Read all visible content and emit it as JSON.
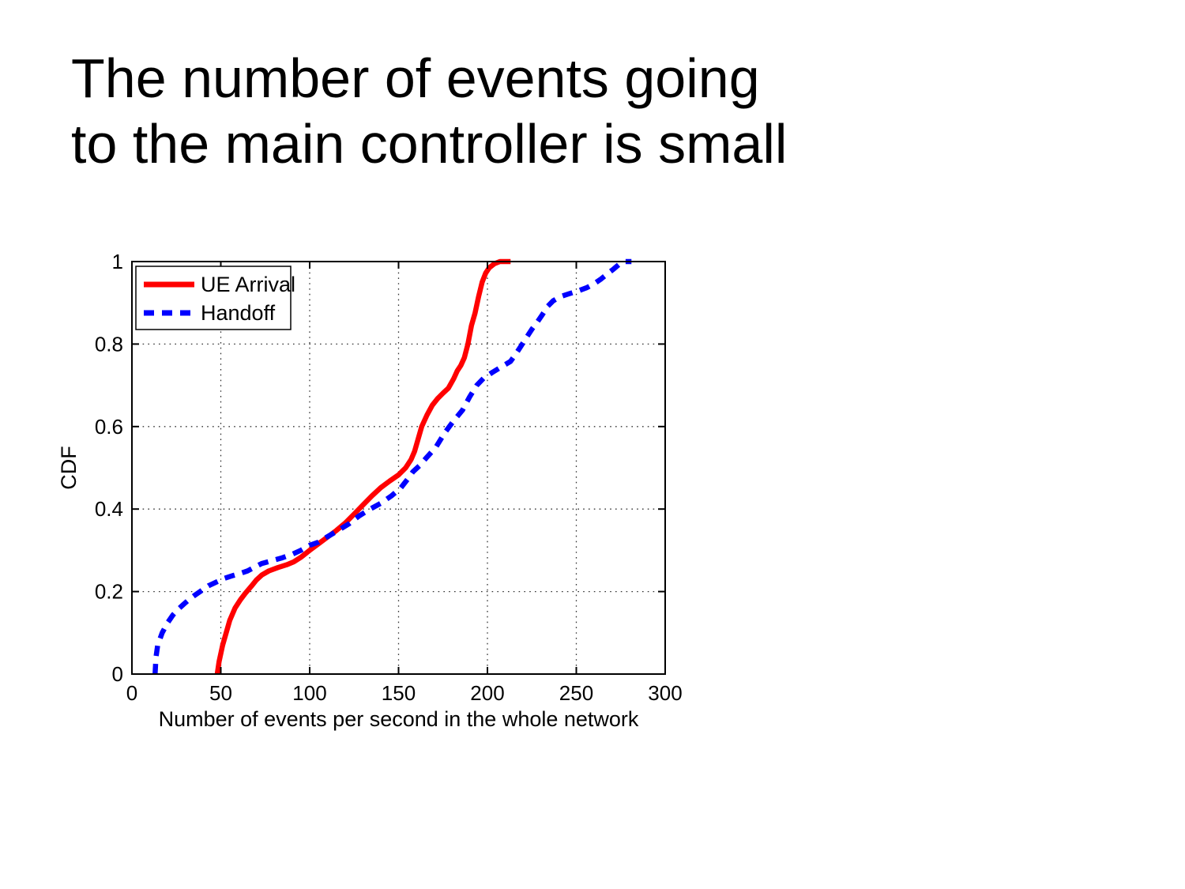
{
  "slide": {
    "title_line1": "The number of events going",
    "title_line2": "to the main controller is small"
  },
  "chart_data": {
    "type": "line",
    "title": "",
    "xlabel": "Number of events per second in the whole network",
    "ylabel": "CDF",
    "xlim": [
      0,
      300
    ],
    "ylim": [
      0,
      1
    ],
    "x_ticks": [
      0,
      50,
      100,
      150,
      200,
      250,
      300
    ],
    "x_tick_labels": [
      "0",
      "50",
      "100",
      "150",
      "200",
      "250",
      "300"
    ],
    "y_ticks": [
      0,
      0.2,
      0.4,
      0.6,
      0.8,
      1
    ],
    "y_tick_labels": [
      "0",
      "0.2",
      "0.4",
      "0.6",
      "0.8",
      "1"
    ],
    "grid": "dotted",
    "frame_color": "#000000",
    "grid_color": "#333333",
    "legend": {
      "position": "top-left",
      "border_color": "#000000",
      "background": "#ffffff"
    },
    "series": [
      {
        "name": "UE Arrival",
        "color": "#ff0000",
        "line_style": "solid",
        "points": [
          [
            48,
            0
          ],
          [
            49,
            0.03
          ],
          [
            51,
            0.07
          ],
          [
            53,
            0.1
          ],
          [
            55,
            0.13
          ],
          [
            58,
            0.16
          ],
          [
            61,
            0.18
          ],
          [
            64,
            0.197
          ],
          [
            67,
            0.212
          ],
          [
            70,
            0.228
          ],
          [
            73,
            0.24
          ],
          [
            77,
            0.25
          ],
          [
            82,
            0.258
          ],
          [
            87,
            0.265
          ],
          [
            91,
            0.272
          ],
          [
            95,
            0.283
          ],
          [
            100,
            0.3
          ],
          [
            105,
            0.316
          ],
          [
            110,
            0.332
          ],
          [
            115,
            0.348
          ],
          [
            120,
            0.366
          ],
          [
            125,
            0.388
          ],
          [
            130,
            0.41
          ],
          [
            135,
            0.432
          ],
          [
            140,
            0.452
          ],
          [
            145,
            0.468
          ],
          [
            150,
            0.483
          ],
          [
            154,
            0.5
          ],
          [
            157,
            0.52
          ],
          [
            159,
            0.54
          ],
          [
            161,
            0.57
          ],
          [
            163,
            0.6
          ],
          [
            166,
            0.628
          ],
          [
            169,
            0.652
          ],
          [
            172,
            0.668
          ],
          [
            175,
            0.681
          ],
          [
            178,
            0.693
          ],
          [
            181,
            0.716
          ],
          [
            183,
            0.735
          ],
          [
            185,
            0.748
          ],
          [
            187,
            0.767
          ],
          [
            189,
            0.8
          ],
          [
            191,
            0.845
          ],
          [
            193,
            0.875
          ],
          [
            195,
            0.915
          ],
          [
            197,
            0.95
          ],
          [
            199,
            0.972
          ],
          [
            201,
            0.985
          ],
          [
            204,
            0.995
          ],
          [
            207,
            1
          ],
          [
            213,
            1
          ]
        ]
      },
      {
        "name": "Handoff",
        "color": "#0000ff",
        "line_style": "dashed",
        "points": [
          [
            13,
            0
          ],
          [
            13.5,
            0.04
          ],
          [
            14.5,
            0.07
          ],
          [
            17,
            0.1
          ],
          [
            20,
            0.124
          ],
          [
            23,
            0.143
          ],
          [
            26,
            0.157
          ],
          [
            29,
            0.169
          ],
          [
            32,
            0.18
          ],
          [
            35,
            0.19
          ],
          [
            39,
            0.202
          ],
          [
            43,
            0.214
          ],
          [
            48,
            0.224
          ],
          [
            52,
            0.232
          ],
          [
            57,
            0.239
          ],
          [
            61,
            0.244
          ],
          [
            65,
            0.25
          ],
          [
            69,
            0.259
          ],
          [
            73,
            0.268
          ],
          [
            78,
            0.274
          ],
          [
            84,
            0.281
          ],
          [
            90,
            0.29
          ],
          [
            95,
            0.3
          ],
          [
            100,
            0.312
          ],
          [
            105,
            0.32
          ],
          [
            110,
            0.333
          ],
          [
            116,
            0.348
          ],
          [
            122,
            0.364
          ],
          [
            128,
            0.384
          ],
          [
            134,
            0.4
          ],
          [
            140,
            0.414
          ],
          [
            146,
            0.432
          ],
          [
            151,
            0.45
          ],
          [
            155,
            0.472
          ],
          [
            158,
            0.49
          ],
          [
            162,
            0.506
          ],
          [
            166,
            0.526
          ],
          [
            171,
            0.55
          ],
          [
            176,
            0.585
          ],
          [
            181,
            0.614
          ],
          [
            186,
            0.64
          ],
          [
            190,
            0.672
          ],
          [
            194,
            0.7
          ],
          [
            198,
            0.718
          ],
          [
            203,
            0.732
          ],
          [
            208,
            0.745
          ],
          [
            213,
            0.758
          ],
          [
            216,
            0.776
          ],
          [
            219,
            0.796
          ],
          [
            222,
            0.816
          ],
          [
            225,
            0.836
          ],
          [
            228,
            0.853
          ],
          [
            231,
            0.872
          ],
          [
            234,
            0.892
          ],
          [
            237,
            0.905
          ],
          [
            241,
            0.915
          ],
          [
            246,
            0.922
          ],
          [
            251,
            0.929
          ],
          [
            256,
            0.937
          ],
          [
            260,
            0.946
          ],
          [
            264,
            0.958
          ],
          [
            268,
            0.972
          ],
          [
            271,
            0.982
          ],
          [
            274,
            0.993
          ],
          [
            277,
            1
          ],
          [
            281,
            1
          ]
        ]
      }
    ]
  }
}
